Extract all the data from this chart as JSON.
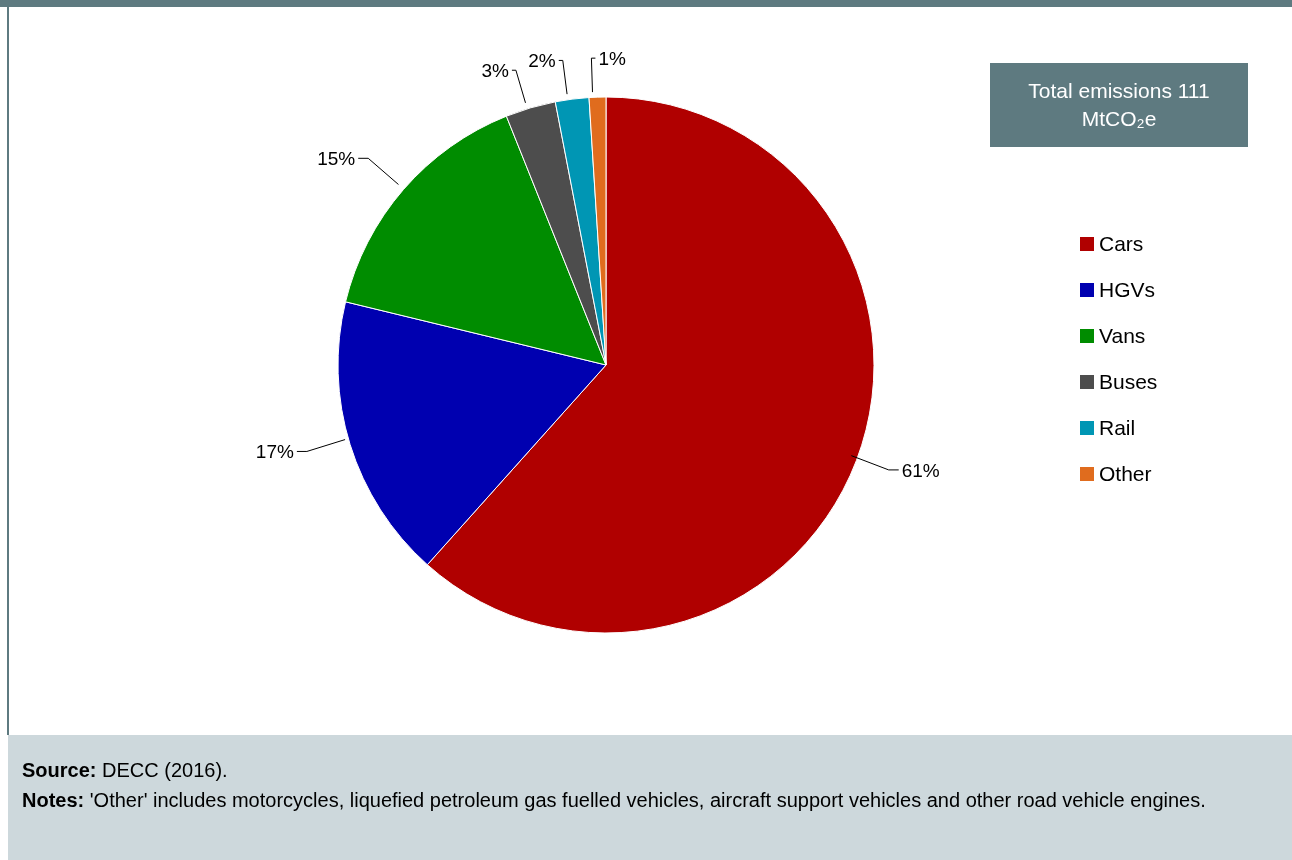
{
  "chart_data": {
    "type": "pie",
    "categories": [
      "Cars",
      "HGVs",
      "Vans",
      "Buses",
      "Rail",
      "Other"
    ],
    "values": [
      61,
      17,
      15,
      3,
      2,
      1
    ],
    "value_labels": [
      "61%",
      "17%",
      "15%",
      "3%",
      "2%",
      "1%"
    ],
    "colors": [
      "#b00000",
      "#0000b0",
      "#008c00",
      "#4d4d4d",
      "#0096b4",
      "#e06c1e"
    ],
    "legend": "right",
    "annotations": [
      "Total emissions 111 MtCO₂e",
      "Source: DECC (2016).",
      "Notes: 'Other' includes motorcycles, liquefied petroleum gas fuelled vehicles, aircraft support vehicles and other road vehicle engines."
    ]
  }
}
